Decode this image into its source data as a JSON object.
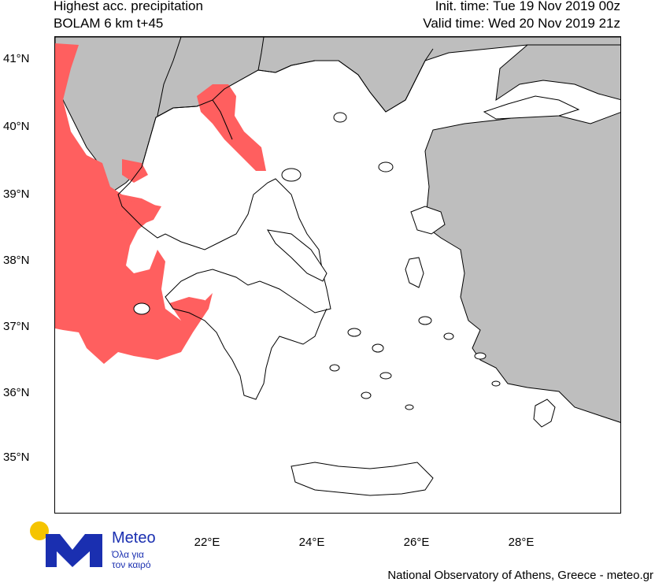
{
  "header": {
    "title_line1": "Highest acc. precipitation",
    "title_line2": "BOLAM 6 km t+45",
    "init_time": "Init. time: Tue 19 Nov 2019 00z",
    "valid_time": "Valid time: Wed 20 Nov 2019 21z"
  },
  "axes": {
    "lat_labels": [
      "41°N",
      "40°N",
      "39°N",
      "38°N",
      "37°N",
      "36°N",
      "35°N"
    ],
    "lon_labels": [
      "22°E",
      "24°E",
      "26°E",
      "28°E"
    ]
  },
  "colors": {
    "land_outside": "#bebebe",
    "sea_and_greece": "#ffffff",
    "precipitation": "#ff5f5f",
    "coastline": "#000000",
    "logo_blue": "#1a2fb0",
    "logo_sun": "#f5c400"
  },
  "logo": {
    "name": "Meteo",
    "tagline1": "Όλα για",
    "tagline2": "τον καιρό"
  },
  "footer": {
    "credit": "National Observatory of Athens, Greece - meteo.gr"
  }
}
